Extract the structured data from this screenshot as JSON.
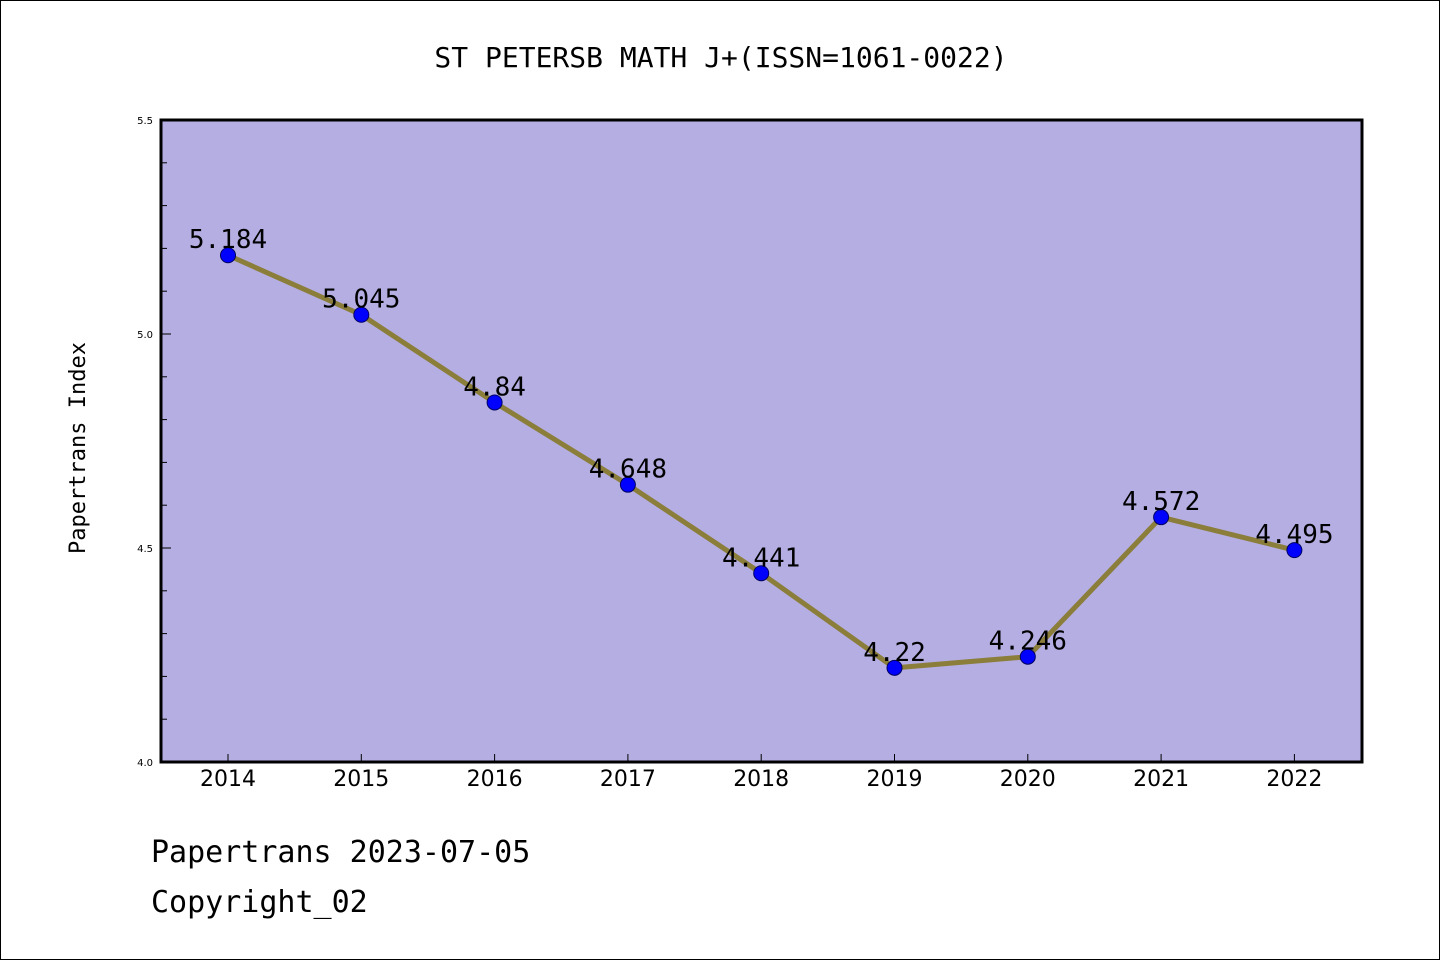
{
  "chart_data": {
    "type": "line",
    "title": "ST PETERSB MATH J+(ISSN=1061-0022)",
    "xlabel": "",
    "ylabel": "Papertrans Index",
    "categories": [
      "2014",
      "2015",
      "2016",
      "2017",
      "2018",
      "2019",
      "2020",
      "2021",
      "2022"
    ],
    "series": [
      {
        "values": [
          5.184,
          5.045,
          4.84,
          4.648,
          4.441,
          4.22,
          4.246,
          4.572,
          4.495
        ],
        "labels": [
          "5.184",
          "5.045",
          "4.84",
          "4.648",
          "4.441",
          "4.22",
          "4.246",
          "4.572",
          "4.495"
        ]
      }
    ],
    "ylim": [
      4.0,
      5.5
    ],
    "yticks": [
      "4.0",
      "4.5",
      "5.0",
      "5.5"
    ],
    "grid": false,
    "legend": "none",
    "colors": {
      "plot_background": "#b4aee2",
      "line": "#8b7d3a",
      "marker": "#0000ff",
      "axis": "#000000"
    }
  },
  "footer": {
    "line1": "Papertrans 2023-07-05",
    "line2": "Copyright_02"
  }
}
